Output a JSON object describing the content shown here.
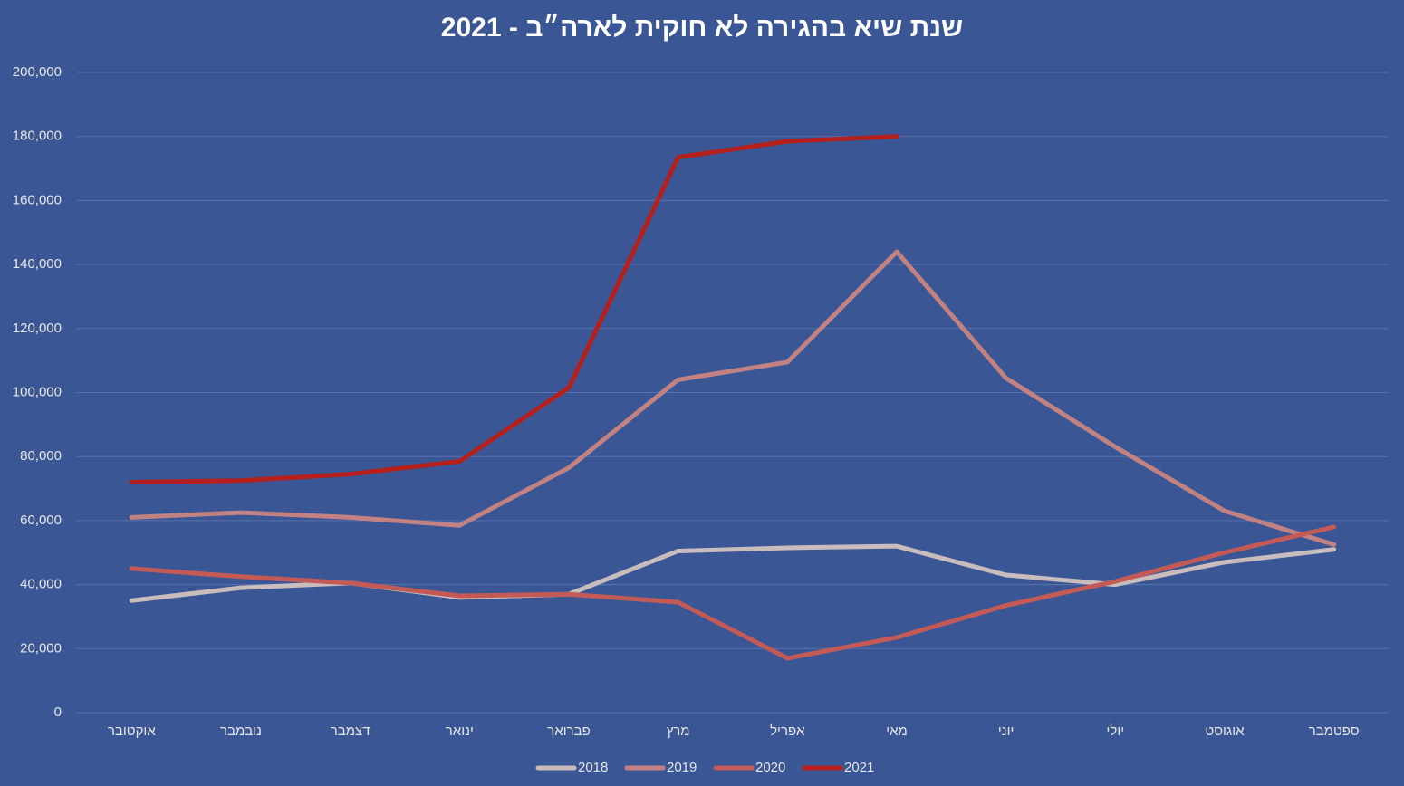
{
  "chart_data": {
    "type": "line",
    "title": "שנת שיא בהגירה לא חוקית לארה״ב - 2021",
    "categories": [
      "אוקטובר",
      "נובמבר",
      "דצמבר",
      "ינואר",
      "פברואר",
      "מרץ",
      "אפריל",
      "מאי",
      "יוני",
      "יולי",
      "אוגוסט",
      "ספטמבר"
    ],
    "series": [
      {
        "name": "2018",
        "color": "#c9bcbc",
        "values": [
          35000,
          39000,
          40500,
          36000,
          37000,
          50500,
          51500,
          52000,
          43000,
          40000,
          47000,
          51000
        ]
      },
      {
        "name": "2019",
        "color": "#c28282",
        "values": [
          61000,
          62500,
          61000,
          58500,
          76500,
          104000,
          109500,
          144000,
          104500,
          83000,
          63000,
          52500
        ]
      },
      {
        "name": "2020",
        "color": "#c45a55",
        "values": [
          45000,
          42500,
          40500,
          36500,
          37000,
          34500,
          17000,
          23500,
          33500,
          41000,
          50000,
          58000
        ]
      },
      {
        "name": "2021",
        "color": "#b5201c",
        "values": [
          72000,
          72500,
          74500,
          78500,
          101500,
          173500,
          178500,
          180000,
          null,
          null,
          null,
          null
        ]
      }
    ],
    "ylim": [
      0,
      200000
    ],
    "yticks": [
      0,
      {
        "value": 20000,
        "label": "20,000"
      },
      {
        "value": 40000,
        "label": "40,000"
      },
      {
        "value": 60000,
        "label": "60,000"
      },
      {
        "value": 80000,
        "label": "80,000"
      },
      {
        "value": 100000,
        "label": "100,000"
      },
      {
        "value": 120000,
        "label": "120,000"
      },
      {
        "value": 140000,
        "label": "140,000"
      },
      {
        "value": 160000,
        "label": "160,000"
      },
      {
        "value": 180000,
        "label": "180,000"
      },
      {
        "value": 200000,
        "label": "200,000"
      }
    ],
    "grid": true,
    "legend": "bottom"
  }
}
